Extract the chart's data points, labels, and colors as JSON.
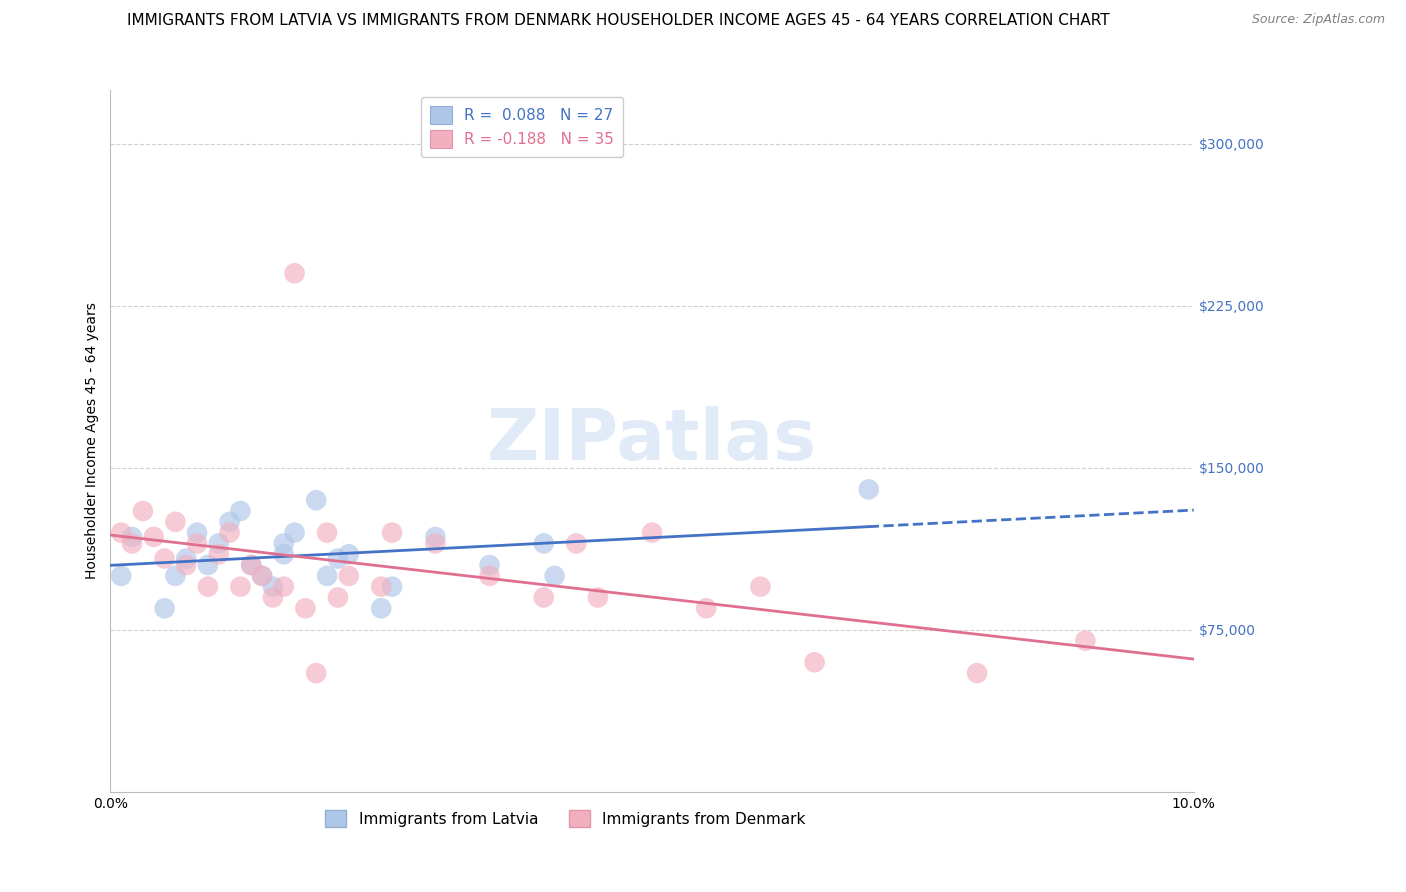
{
  "title": "IMMIGRANTS FROM LATVIA VS IMMIGRANTS FROM DENMARK HOUSEHOLDER INCOME AGES 45 - 64 YEARS CORRELATION CHART",
  "source": "Source: ZipAtlas.com",
  "ylabel": "Householder Income Ages 45 - 64 years",
  "xlim": [
    0.0,
    0.1
  ],
  "ylim": [
    0,
    325000
  ],
  "xticks": [
    0.0,
    0.02,
    0.04,
    0.06,
    0.08,
    0.1
  ],
  "xticklabels": [
    "0.0%",
    "",
    "",
    "",
    "",
    "10.0%"
  ],
  "ytick_positions": [
    75000,
    150000,
    225000,
    300000
  ],
  "ytick_labels": [
    "$75,000",
    "$150,000",
    "$225,000",
    "$300,000"
  ],
  "latvia_R": 0.088,
  "latvia_N": 27,
  "denmark_R": -0.188,
  "denmark_N": 35,
  "latvia_color": "#aec6e8",
  "denmark_color": "#f2afc0",
  "latvia_line_color": "#4472c4",
  "denmark_line_color": "#e07090",
  "background_color": "#ffffff",
  "grid_color": "#cccccc",
  "ytick_color": "#4472c4",
  "latvia_x": [
    0.001,
    0.002,
    0.005,
    0.006,
    0.007,
    0.008,
    0.009,
    0.01,
    0.011,
    0.012,
    0.013,
    0.014,
    0.015,
    0.016,
    0.016,
    0.017,
    0.019,
    0.02,
    0.021,
    0.022,
    0.025,
    0.026,
    0.03,
    0.035,
    0.04,
    0.041,
    0.07
  ],
  "latvia_y": [
    100000,
    118000,
    85000,
    100000,
    108000,
    120000,
    105000,
    115000,
    125000,
    130000,
    105000,
    100000,
    95000,
    110000,
    115000,
    120000,
    135000,
    100000,
    108000,
    110000,
    85000,
    95000,
    118000,
    105000,
    115000,
    100000,
    140000
  ],
  "denmark_x": [
    0.001,
    0.002,
    0.003,
    0.004,
    0.005,
    0.006,
    0.007,
    0.008,
    0.009,
    0.01,
    0.011,
    0.012,
    0.013,
    0.014,
    0.015,
    0.016,
    0.017,
    0.018,
    0.019,
    0.02,
    0.021,
    0.022,
    0.025,
    0.026,
    0.03,
    0.035,
    0.04,
    0.043,
    0.045,
    0.05,
    0.055,
    0.06,
    0.065,
    0.08,
    0.09
  ],
  "denmark_y": [
    120000,
    115000,
    130000,
    118000,
    108000,
    125000,
    105000,
    115000,
    95000,
    110000,
    120000,
    95000,
    105000,
    100000,
    90000,
    95000,
    240000,
    85000,
    55000,
    120000,
    90000,
    100000,
    95000,
    120000,
    115000,
    100000,
    90000,
    115000,
    90000,
    120000,
    85000,
    95000,
    60000,
    55000,
    70000
  ],
  "title_fontsize": 11,
  "axis_label_fontsize": 10,
  "tick_fontsize": 10,
  "legend_fontsize": 11,
  "watermark_text": "ZIPatlas",
  "watermark_color": "#c5d8f0",
  "watermark_alpha": 0.5
}
